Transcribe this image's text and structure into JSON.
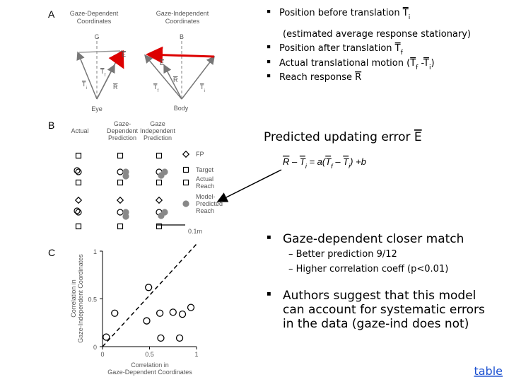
{
  "panel_a": {
    "label": "A",
    "left_title": [
      "Gaze-Dependent",
      "Coordinates"
    ],
    "right_title": [
      "Gaze-Independent",
      "Coordinates"
    ],
    "left_ref": "G",
    "right_ref": "B",
    "left_origin": "Eye",
    "right_origin": "Body",
    "left_vectors": [
      {
        "var": "E"
      },
      {
        "var": "T",
        "sub": "f"
      },
      {
        "var": "T",
        "sub": "i"
      },
      {
        "var": "R"
      }
    ],
    "right_vectors": [
      {
        "var": "E"
      },
      {
        "var": "R"
      },
      {
        "var": "T",
        "sub": "f"
      },
      {
        "var": "T",
        "sub": "i"
      }
    ]
  },
  "panel_b": {
    "label": "B",
    "columns": [
      [
        "Actual"
      ],
      [
        "Gaze-",
        "Dependent",
        "Prediction"
      ],
      [
        "Gaze",
        "Independent",
        "Prediction"
      ]
    ],
    "legend": [
      [
        "FP"
      ],
      [
        "Target"
      ],
      [
        "Actual",
        "Reach"
      ],
      [
        "Model-",
        "Predicted",
        "Reach"
      ]
    ],
    "scale": "0.1m"
  },
  "panel_c": {
    "label": "C",
    "xlabel": [
      "Correlation in",
      "Gaze-Dependent Coordinates"
    ],
    "ylabel": [
      "Correlation in",
      "Gaze-Independent Coordinates"
    ],
    "xlim": [
      0,
      1
    ],
    "ylim": [
      0,
      1
    ],
    "xticks": [
      0,
      0.5,
      1
    ],
    "yticks": [
      0,
      0.5,
      1
    ],
    "points": {
      "x": [
        0.04,
        0.13,
        0.49,
        0.47,
        0.61,
        0.62,
        0.75,
        0.85,
        0.94,
        0.82
      ],
      "y": [
        0.1,
        0.35,
        0.62,
        0.27,
        0.35,
        0.09,
        0.36,
        0.34,
        0.41,
        0.09
      ]
    }
  },
  "bullets": [
    {
      "text": "Position before translation ",
      "var": "T",
      "sub": "i"
    },
    {
      "text": "(estimated average response stationary)"
    },
    {
      "text": "Position after translation ",
      "var": "T",
      "sub": "f"
    },
    {
      "text": "Actual translational motion (",
      "var": "T",
      "sub": "f",
      "mid": " -",
      "var2": "T",
      "sub2": "i",
      "end": ")"
    },
    {
      "text": "Reach response ",
      "var": "R"
    }
  ],
  "heading": {
    "text": "Predicted updating error ",
    "var": "E"
  },
  "equation": {
    "p1": "R",
    "p2": " – ",
    "p3": "T",
    "p4": "i",
    "p5": " = a(",
    "p6": "T",
    "p7": "f",
    "p8": " – ",
    "p9": "T",
    "p10": "i",
    "p11": ") +b"
  },
  "points": [
    {
      "text": "Gaze-dependent closer match",
      "subs": [
        "– Better prediction 9/12",
        "– Higher correlation coeff (p<0.01)"
      ]
    },
    {
      "lines": [
        "Authors suggest that this model",
        "can account for systematic errors",
        "in the data (gaze-ind does not)"
      ]
    }
  ],
  "link": "table"
}
